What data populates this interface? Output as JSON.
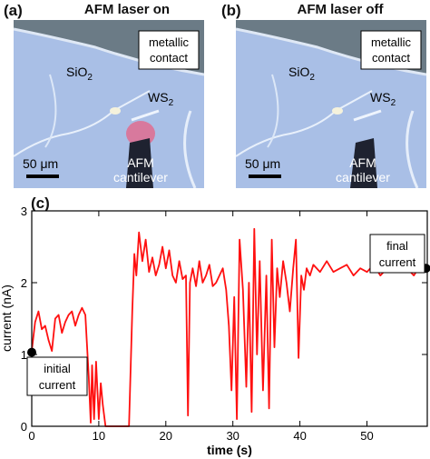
{
  "panel_a": {
    "letter": "(a)",
    "title": "AFM laser on",
    "labels": {
      "contact_line1": "metallic",
      "contact_line2": "contact",
      "sio2_main": "SiO",
      "sio2_sub": "2",
      "ws2_main": "WS",
      "ws2_sub": "2",
      "scale": "50 μm",
      "cantilever_line1": "AFM",
      "cantilever_line2": "cantilever"
    }
  },
  "panel_b": {
    "letter": "(b)",
    "title": "AFM laser off",
    "labels": {
      "contact_line1": "metallic",
      "contact_line2": "contact",
      "sio2_main": "SiO",
      "sio2_sub": "2",
      "ws2_main": "WS",
      "ws2_sub": "2",
      "scale": "50 μm",
      "cantilever_line1": "AFM",
      "cantilever_line2": "cantilever"
    }
  },
  "panel_c": {
    "letter": "(c)",
    "annotation_initial_line1": "initial",
    "annotation_initial_line2": "current",
    "annotation_final_line1": "final",
    "annotation_final_line2": "current"
  },
  "colors": {
    "trace": "#ff1010",
    "marker": "#000000",
    "photo_background": "#a9bfe6",
    "contact": "#6b7b86",
    "laser_glow": "#ff4060"
  },
  "chart_data": {
    "type": "line",
    "xlabel": "time (s)",
    "ylabel": "current (nA)",
    "xlim": [
      0,
      59
    ],
    "ylim": [
      0,
      3
    ],
    "xticks": [
      0,
      10,
      20,
      30,
      40,
      50
    ],
    "yticks": [
      0,
      1,
      2,
      3
    ],
    "grid": false,
    "series": [
      {
        "x": [
          0,
          0.5,
          1,
          1.5,
          2,
          2.5,
          3,
          3.5,
          4,
          4.5,
          5,
          5.5,
          6,
          6.5,
          7,
          7.5,
          8,
          8.2,
          8.5,
          8.8,
          9,
          9.3,
          9.6,
          10,
          10.3,
          10.6,
          11,
          12,
          13,
          14,
          14.5,
          15,
          15.3,
          15.6,
          16,
          16.5,
          17,
          17.5,
          18,
          18.5,
          19,
          19.5,
          20,
          20.5,
          21,
          21.5,
          22,
          22.5,
          23,
          23.3,
          23.6,
          24,
          24.5,
          25,
          25.5,
          26,
          26.5,
          27,
          27.5,
          28,
          28.5,
          29,
          29.4,
          29.8,
          30.2,
          30.6,
          31,
          31.5,
          32,
          32.4,
          32.8,
          33.2,
          33.6,
          34,
          34.5,
          35,
          35.4,
          35.8,
          36.2,
          36.6,
          37,
          37.5,
          38,
          38.5,
          39,
          39.4,
          39.8,
          40.2,
          40.6,
          41,
          41.5,
          42,
          43,
          44,
          45,
          46,
          47,
          48,
          49,
          50,
          51,
          52,
          53,
          54,
          55,
          56,
          57,
          58,
          58.7
        ],
        "y": [
          1.05,
          1.45,
          1.6,
          1.35,
          1.4,
          1.2,
          1.05,
          1.5,
          1.55,
          1.3,
          1.45,
          1.55,
          1.6,
          1.4,
          1.55,
          1.65,
          1.55,
          1.2,
          0.7,
          0.05,
          0.85,
          0.1,
          0.9,
          0.1,
          0.6,
          0.3,
          0,
          0,
          0,
          0,
          0,
          1.6,
          2.4,
          2.1,
          2.7,
          2.3,
          2.6,
          2.15,
          2.35,
          2.1,
          2.25,
          2.5,
          2.2,
          2.45,
          2.1,
          2.0,
          2.3,
          2.05,
          2.1,
          0.15,
          2.0,
          2.2,
          1.95,
          2.3,
          2.0,
          2.1,
          2.25,
          1.95,
          2.0,
          2.1,
          2.2,
          1.9,
          1.4,
          0.5,
          1.8,
          0.1,
          2.6,
          1.9,
          0.55,
          2.0,
          0.2,
          2.75,
          1.0,
          2.3,
          0.5,
          2.1,
          0.25,
          2.6,
          1.1,
          2.2,
          1.8,
          2.3,
          2.0,
          1.6,
          2.2,
          2.6,
          0.95,
          2.1,
          1.9,
          2.2,
          2.1,
          2.25,
          2.15,
          2.3,
          2.15,
          2.2,
          2.25,
          2.1,
          2.2,
          2.15,
          2.25,
          2.1,
          2.2,
          2.3,
          2.15,
          2.2,
          2.1,
          2.25,
          2.2
        ]
      }
    ],
    "markers": [
      {
        "x": 0,
        "y": 1.03
      },
      {
        "x": 58.8,
        "y": 2.2
      }
    ]
  }
}
